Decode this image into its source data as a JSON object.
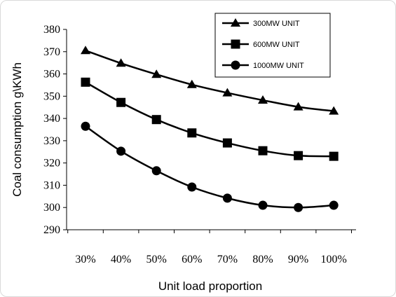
{
  "chart_data": {
    "type": "line",
    "x": [
      "30%",
      "40%",
      "50%",
      "60%",
      "70%",
      "80%",
      "90%",
      "100%"
    ],
    "xlabel": "Unit load proportion",
    "ylabel": "Coal consumption g\\KWh",
    "ylim": [
      290,
      380
    ],
    "yticks": [
      290,
      300,
      310,
      320,
      330,
      340,
      350,
      360,
      370,
      380
    ],
    "grid": false,
    "legend_position": "top-right",
    "series": [
      {
        "name": "300MW UNIT",
        "marker": "triangle",
        "values": [
          370.5,
          364.8,
          359.8,
          355.2,
          351.5,
          348.2,
          345.2,
          343.3
        ]
      },
      {
        "name": "600MW UNIT",
        "marker": "square",
        "values": [
          356.3,
          347.2,
          339.5,
          333.5,
          329.0,
          325.5,
          323.3,
          323.0
        ]
      },
      {
        "name": "1000MW UNIT",
        "marker": "circle",
        "values": [
          336.5,
          325.3,
          316.5,
          309.2,
          304.2,
          301.0,
          300.0,
          301.0
        ]
      }
    ],
    "colors": {
      "line": "#000000",
      "marker": "#000000"
    }
  }
}
